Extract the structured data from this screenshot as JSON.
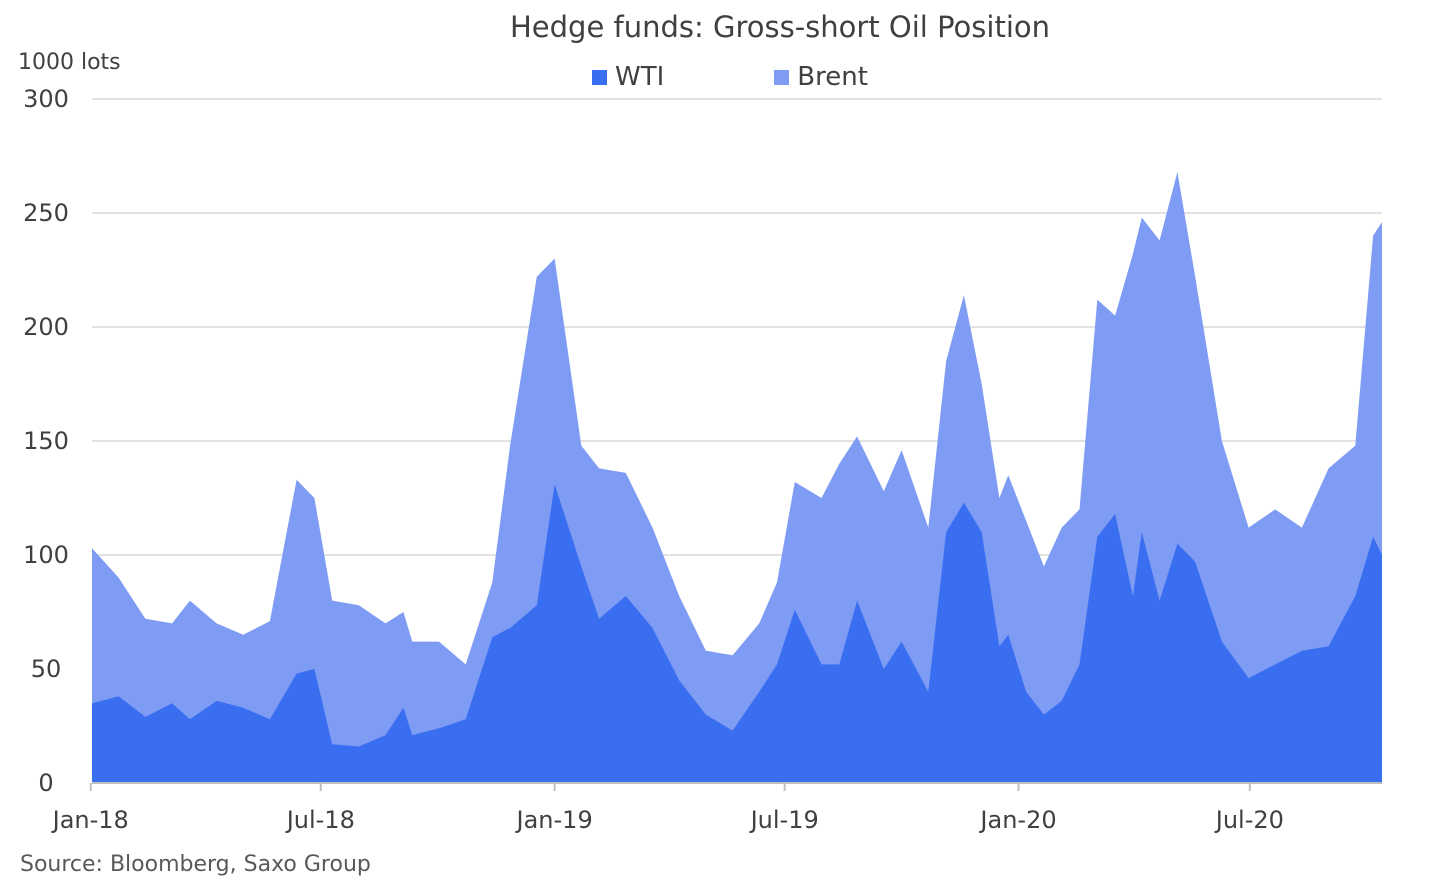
{
  "chart_data": {
    "type": "area",
    "title": "Hedge funds: Gross-short  Oil Position",
    "ylabel": "1000 lots",
    "source": "Source: Bloomberg, Saxo Group",
    "ylim": [
      0,
      300
    ],
    "yticks": [
      "0",
      "50",
      "100",
      "150",
      "200",
      "250",
      "300"
    ],
    "x_range": [
      "2018-01-02",
      "2020-10-13"
    ],
    "xtick_labels": [
      {
        "label": "Jan-18",
        "date": "2018-01-01"
      },
      {
        "label": "Jul-18",
        "date": "2018-07-01"
      },
      {
        "label": "Jan-19",
        "date": "2019-01-01"
      },
      {
        "label": "Jul-19",
        "date": "2019-07-01"
      },
      {
        "label": "Jan-20",
        "date": "2020-01-01"
      },
      {
        "label": "Jul-20",
        "date": "2020-07-01"
      }
    ],
    "stacked": true,
    "grid": true,
    "legend_position": "top",
    "colors": {
      "WTI": "#3a6ef0",
      "Brent": "#7f9cf5",
      "grid": "#d9d9d9",
      "axis": "#bfbfbf"
    },
    "series": [
      {
        "name": "WTI",
        "points": [
          [
            "2018-01-02",
            35
          ],
          [
            "2018-01-23",
            38
          ],
          [
            "2018-02-13",
            29
          ],
          [
            "2018-03-06",
            35
          ],
          [
            "2018-03-20",
            28
          ],
          [
            "2018-04-10",
            36
          ],
          [
            "2018-05-01",
            33
          ],
          [
            "2018-05-22",
            28
          ],
          [
            "2018-06-12",
            48
          ],
          [
            "2018-06-26",
            50
          ],
          [
            "2018-07-10",
            17
          ],
          [
            "2018-07-31",
            16
          ],
          [
            "2018-08-21",
            21
          ],
          [
            "2018-09-04",
            33
          ],
          [
            "2018-09-11",
            21
          ],
          [
            "2018-10-02",
            24
          ],
          [
            "2018-10-23",
            28
          ],
          [
            "2018-11-13",
            64
          ],
          [
            "2018-11-27",
            68
          ],
          [
            "2018-12-18",
            78
          ],
          [
            "2019-01-01",
            131
          ],
          [
            "2019-01-22",
            95
          ],
          [
            "2019-02-05",
            72
          ],
          [
            "2019-02-26",
            82
          ],
          [
            "2019-03-19",
            68
          ],
          [
            "2019-04-09",
            45
          ],
          [
            "2019-04-30",
            30
          ],
          [
            "2019-05-21",
            23
          ],
          [
            "2019-06-11",
            40
          ],
          [
            "2019-06-25",
            52
          ],
          [
            "2019-07-09",
            76
          ],
          [
            "2019-07-30",
            52
          ],
          [
            "2019-08-13",
            52
          ],
          [
            "2019-08-27",
            80
          ],
          [
            "2019-09-17",
            50
          ],
          [
            "2019-10-01",
            62
          ],
          [
            "2019-10-22",
            40
          ],
          [
            "2019-11-05",
            110
          ],
          [
            "2019-11-19",
            123
          ],
          [
            "2019-12-03",
            110
          ],
          [
            "2019-12-17",
            60
          ],
          [
            "2019-12-24",
            65
          ],
          [
            "2020-01-07",
            40
          ],
          [
            "2020-01-21",
            30
          ],
          [
            "2020-02-04",
            36
          ],
          [
            "2020-02-18",
            52
          ],
          [
            "2020-03-03",
            108
          ],
          [
            "2020-03-17",
            118
          ],
          [
            "2020-03-31",
            82
          ],
          [
            "2020-04-07",
            110
          ],
          [
            "2020-04-21",
            80
          ],
          [
            "2020-05-05",
            105
          ],
          [
            "2020-05-19",
            97
          ],
          [
            "2020-06-09",
            62
          ],
          [
            "2020-06-30",
            46
          ],
          [
            "2020-07-21",
            52
          ],
          [
            "2020-08-11",
            58
          ],
          [
            "2020-09-01",
            60
          ],
          [
            "2020-09-22",
            82
          ],
          [
            "2020-10-06",
            108
          ],
          [
            "2020-10-13",
            100
          ]
        ]
      },
      {
        "name": "Brent",
        "points": [
          [
            "2018-01-02",
            103
          ],
          [
            "2018-01-23",
            90
          ],
          [
            "2018-02-13",
            72
          ],
          [
            "2018-03-06",
            70
          ],
          [
            "2018-03-20",
            80
          ],
          [
            "2018-04-10",
            70
          ],
          [
            "2018-05-01",
            65
          ],
          [
            "2018-05-22",
            71
          ],
          [
            "2018-06-12",
            133
          ],
          [
            "2018-06-26",
            125
          ],
          [
            "2018-07-10",
            80
          ],
          [
            "2018-07-31",
            78
          ],
          [
            "2018-08-21",
            70
          ],
          [
            "2018-09-04",
            75
          ],
          [
            "2018-09-11",
            62
          ],
          [
            "2018-10-02",
            62
          ],
          [
            "2018-10-23",
            52
          ],
          [
            "2018-11-13",
            88
          ],
          [
            "2018-11-27",
            148
          ],
          [
            "2018-12-18",
            222
          ],
          [
            "2019-01-01",
            230
          ],
          [
            "2019-01-22",
            148
          ],
          [
            "2019-02-05",
            138
          ],
          [
            "2019-02-26",
            136
          ],
          [
            "2019-03-19",
            112
          ],
          [
            "2019-04-09",
            82
          ],
          [
            "2019-04-30",
            58
          ],
          [
            "2019-05-21",
            56
          ],
          [
            "2019-06-11",
            70
          ],
          [
            "2019-06-25",
            88
          ],
          [
            "2019-07-09",
            132
          ],
          [
            "2019-07-30",
            125
          ],
          [
            "2019-08-13",
            140
          ],
          [
            "2019-08-27",
            152
          ],
          [
            "2019-09-17",
            128
          ],
          [
            "2019-10-01",
            146
          ],
          [
            "2019-10-22",
            112
          ],
          [
            "2019-11-05",
            185
          ],
          [
            "2019-11-19",
            214
          ],
          [
            "2019-12-03",
            175
          ],
          [
            "2019-12-17",
            125
          ],
          [
            "2019-12-24",
            135
          ],
          [
            "2020-01-07",
            115
          ],
          [
            "2020-01-21",
            95
          ],
          [
            "2020-02-04",
            112
          ],
          [
            "2020-02-18",
            120
          ],
          [
            "2020-03-03",
            212
          ],
          [
            "2020-03-17",
            205
          ],
          [
            "2020-03-31",
            232
          ],
          [
            "2020-04-07",
            248
          ],
          [
            "2020-04-21",
            238
          ],
          [
            "2020-05-05",
            268
          ],
          [
            "2020-05-19",
            222
          ],
          [
            "2020-06-09",
            150
          ],
          [
            "2020-06-30",
            112
          ],
          [
            "2020-07-21",
            120
          ],
          [
            "2020-08-11",
            112
          ],
          [
            "2020-09-01",
            138
          ],
          [
            "2020-09-22",
            148
          ],
          [
            "2020-10-06",
            240
          ],
          [
            "2020-10-13",
            246
          ]
        ]
      }
    ]
  }
}
